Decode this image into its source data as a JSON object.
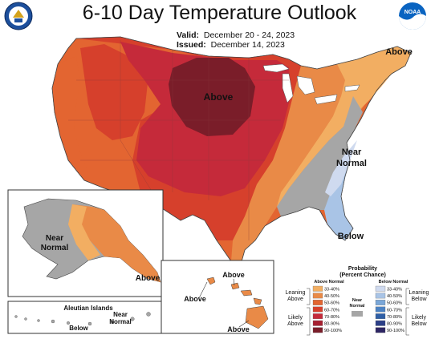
{
  "title": "6-10 Day Temperature Outlook",
  "valid": {
    "label": "Valid:",
    "value": "December 20 - 24, 2023"
  },
  "issued": {
    "label": "Issued:",
    "value": "December 14, 2023"
  },
  "logos": {
    "left": "doc-seal-icon",
    "right": "noaa-logo-icon",
    "left_text": "DEPARTMENT OF COMMERCE",
    "right_text": "NOAA"
  },
  "map_labels": {
    "above_center": "Above",
    "above_ne": "Above",
    "near_normal_se_1": "Near",
    "near_normal_se_2": "Normal",
    "below_se": "Below",
    "ak_near_1": "Near",
    "ak_near_2": "Normal",
    "ak_above": "Above",
    "aleutian_title": "Aleutian Islands",
    "aleutian_below": "Below",
    "aleutian_near_1": "Near",
    "aleutian_near_2": "Normal",
    "hi_above_1": "Above",
    "hi_above_2": "Above",
    "hi_above_3": "Above"
  },
  "legend": {
    "title_1": "Probability",
    "title_2": "(Percent Chance)",
    "above_header": "Above Normal",
    "below_header": "Below Normal",
    "near_header_1": "Near",
    "near_header_2": "Normal",
    "leaning_above_1": "Leaning",
    "leaning_above_2": "Above",
    "likely_above_1": "Likely",
    "likely_above_2": "Above",
    "leaning_below_1": "Leaning",
    "leaning_below_2": "Below",
    "likely_below_1": "Likely",
    "likely_below_2": "Below",
    "above_bins": [
      {
        "range": "33-40%",
        "color": "#f2ae62"
      },
      {
        "range": "40-50%",
        "color": "#e98a47"
      },
      {
        "range": "50-60%",
        "color": "#e36531"
      },
      {
        "range": "60-70%",
        "color": "#d6402c"
      },
      {
        "range": "70-80%",
        "color": "#c52a3a"
      },
      {
        "range": "80-90%",
        "color": "#a61f30"
      },
      {
        "range": "90-100%",
        "color": "#7a1d29"
      }
    ],
    "below_bins": [
      {
        "range": "33-40%",
        "color": "#cfdaef"
      },
      {
        "range": "40-50%",
        "color": "#a9c4e6"
      },
      {
        "range": "50-60%",
        "color": "#7aa7d8"
      },
      {
        "range": "60-70%",
        "color": "#4c82c3"
      },
      {
        "range": "70-80%",
        "color": "#2f5fa6"
      },
      {
        "range": "80-90%",
        "color": "#2b3f87"
      },
      {
        "range": "90-100%",
        "color": "#2d2563"
      }
    ],
    "near_color": "#a6a6a6"
  },
  "colors": {
    "near_normal": "#a6a6a6",
    "above_33_40": "#f2ae62",
    "above_40_50": "#e98a47",
    "above_50_60": "#e36531",
    "above_60_70": "#d6402c",
    "above_70_80": "#c52a3a",
    "above_80_90": "#a61f30",
    "below_33_40": "#cfdaef",
    "below_40_50": "#a9c4e6"
  }
}
